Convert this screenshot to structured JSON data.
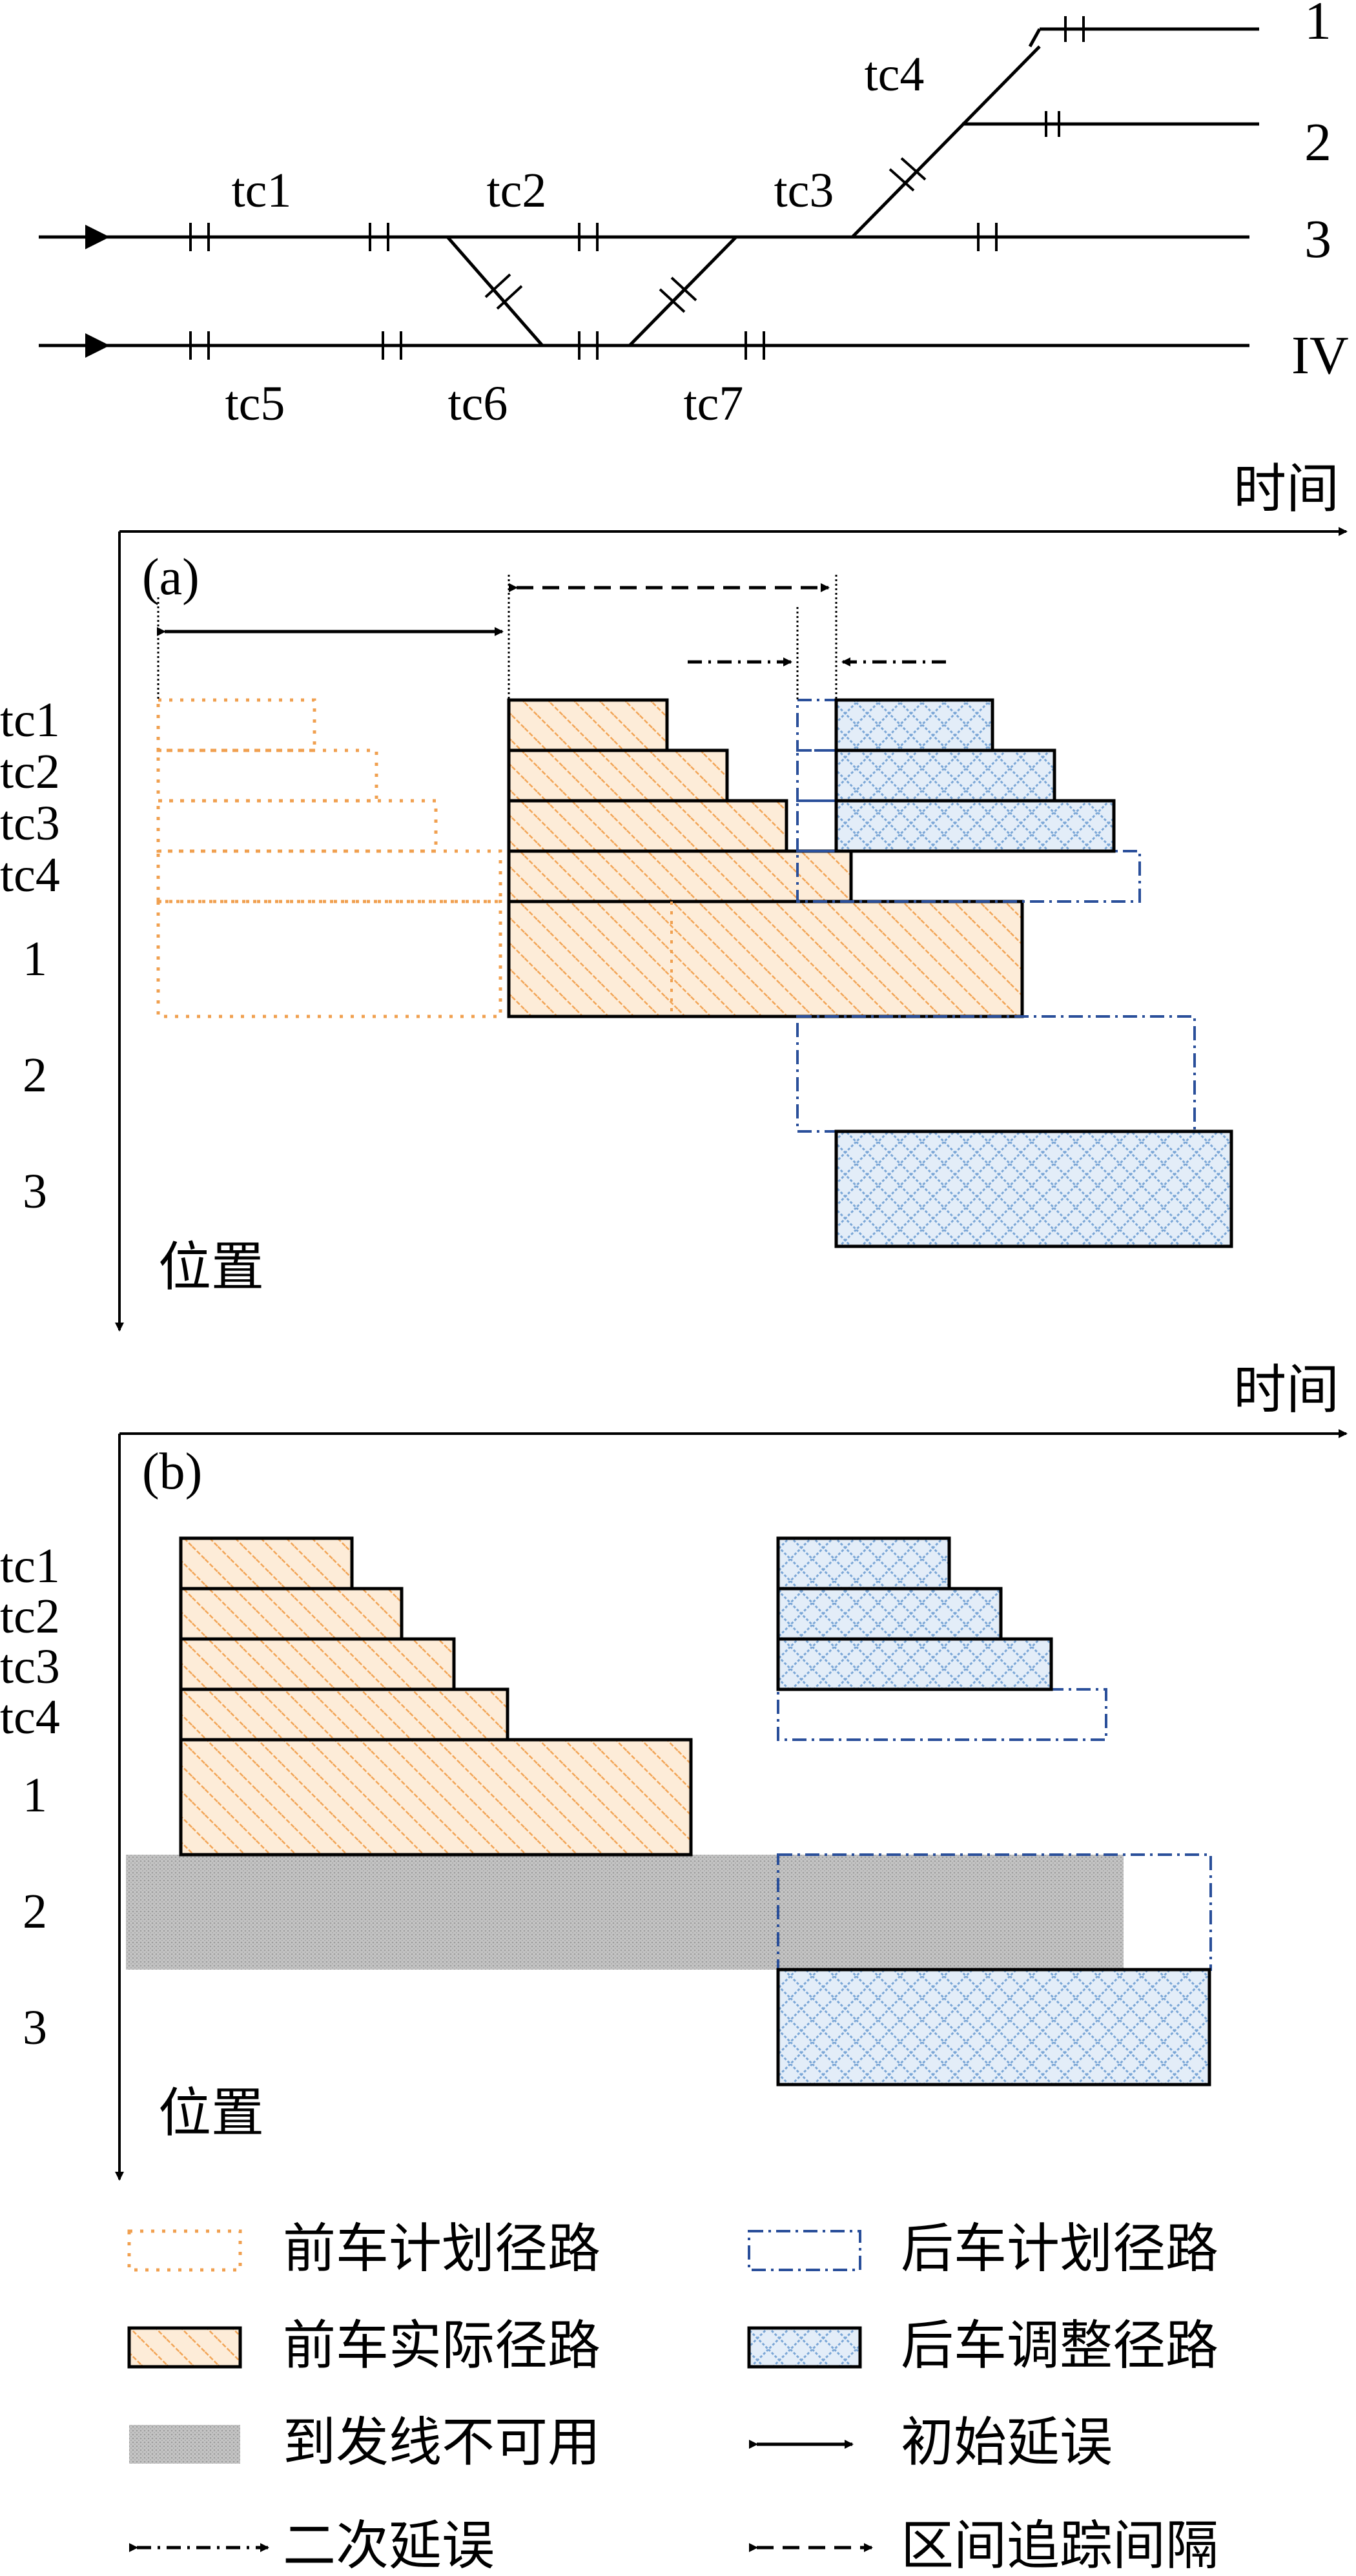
{
  "track_layout": {
    "track_circuits": [
      "tc1",
      "tc2",
      "tc3",
      "tc4",
      "tc5",
      "tc6",
      "tc7"
    ],
    "station_tracks": [
      "1",
      "2",
      "3",
      "IV"
    ]
  },
  "panel_a": {
    "label": "(a)",
    "time_axis_label": "时间",
    "position_axis_label": "位置",
    "rows": [
      "tc1",
      "tc2",
      "tc3",
      "tc4",
      "1",
      "2",
      "3"
    ]
  },
  "panel_b": {
    "label": "(b)",
    "time_axis_label": "时间",
    "position_axis_label": "位置",
    "rows": [
      "tc1",
      "tc2",
      "tc3",
      "tc4",
      "1",
      "2",
      "3"
    ]
  },
  "legend": {
    "items": [
      {
        "label": "前车计划径路"
      },
      {
        "label": "后车计划径路"
      },
      {
        "label": "前车实际径路"
      },
      {
        "label": "后车调整径路"
      },
      {
        "label": "到发线不可用"
      },
      {
        "label": "初始延误"
      },
      {
        "label": "二次延误"
      },
      {
        "label": "区间追踪间隔"
      }
    ]
  },
  "colors": {
    "orange": "#f0a050",
    "blue": "#2a4f9a",
    "light_blue": "#7aa6d6",
    "gray": "#bdbdbd"
  }
}
